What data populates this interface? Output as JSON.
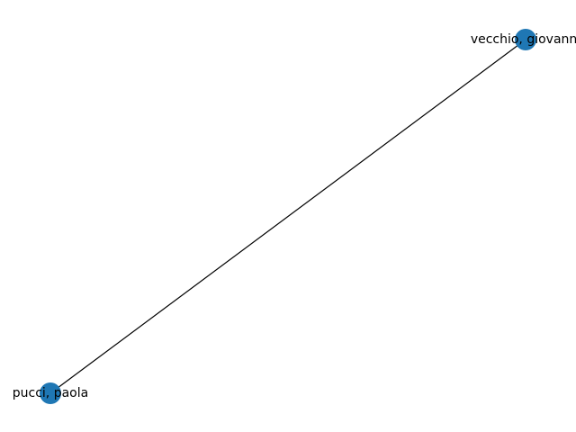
{
  "graph": {
    "node_color": "#1f77b4",
    "edge_color": "#000000",
    "nodes": [
      {
        "id": "vecchio",
        "label": "vecchio, giovanni"
      },
      {
        "id": "pucci",
        "label": "pucci, paola"
      }
    ],
    "edges": [
      {
        "source": "vecchio",
        "target": "pucci"
      }
    ]
  }
}
